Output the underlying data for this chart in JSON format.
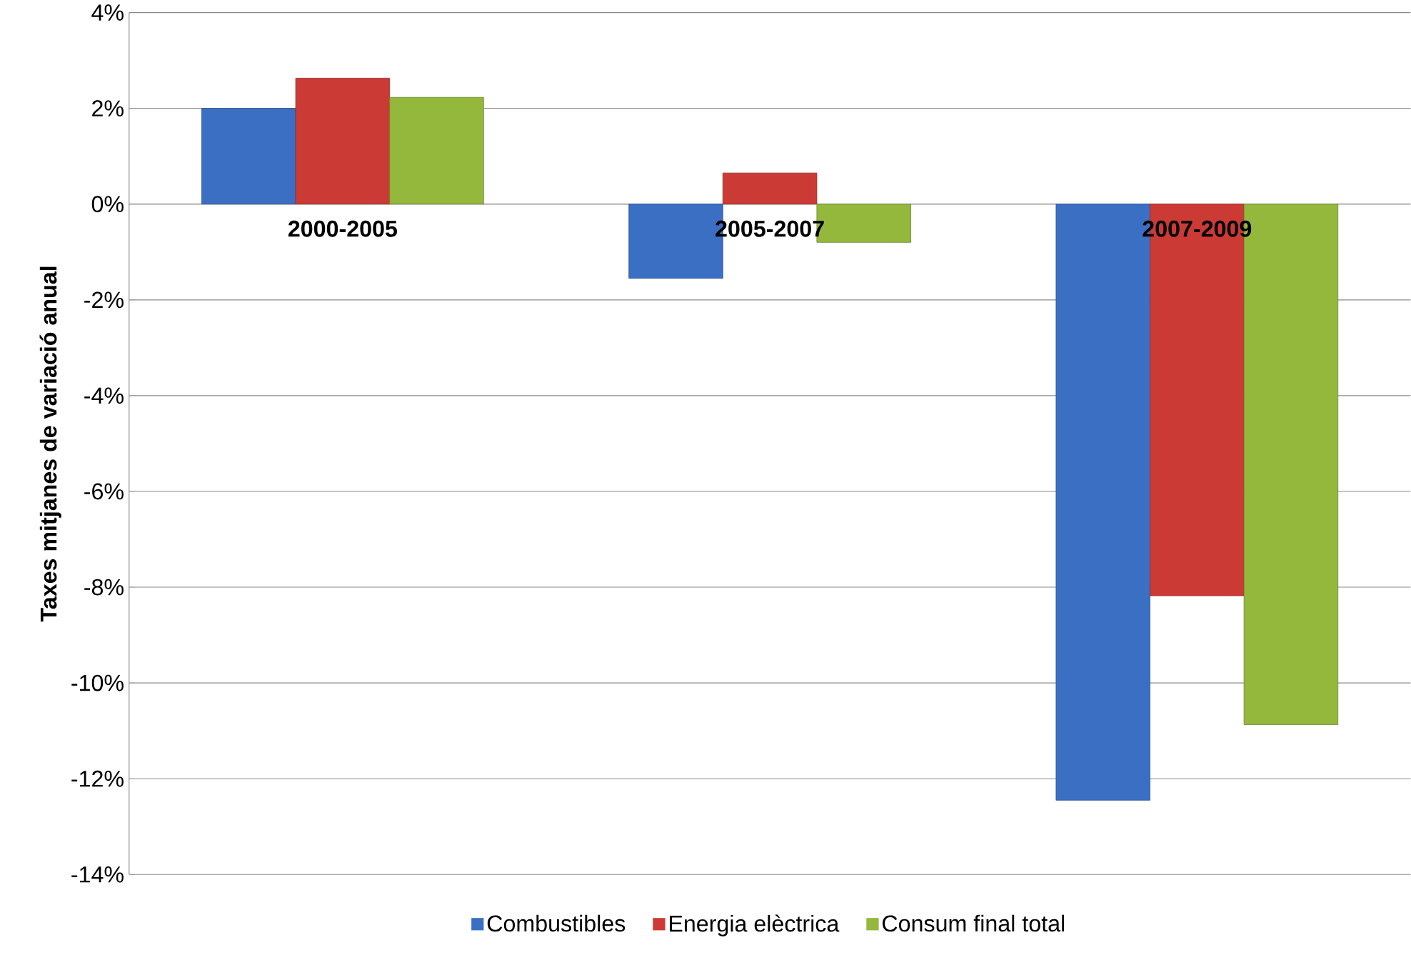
{
  "chart_data": {
    "type": "bar",
    "ylabel": "Taxes mitjanes de variació  anual",
    "categories": [
      "2000-2005",
      "2005-2007",
      "2007-2009"
    ],
    "series": [
      {
        "name": "Combustibles",
        "color": "#3a6fc4",
        "values": [
          2.0,
          -1.55,
          -12.45
        ]
      },
      {
        "name": "Energia elèctrica",
        "color": "#cc3a36",
        "values": [
          2.63,
          0.65,
          -8.18
        ]
      },
      {
        "name": "Consum final total",
        "color": "#94b83c",
        "values": [
          2.23,
          -0.8,
          -10.87
        ]
      }
    ],
    "ylim": [
      -14,
      4
    ],
    "yticks": [
      {
        "value": -14,
        "label": "-14%"
      },
      {
        "value": -12,
        "label": "-12%"
      },
      {
        "value": -10,
        "label": "-10%"
      },
      {
        "value": -8,
        "label": "-8%"
      },
      {
        "value": -6,
        "label": "-6%"
      },
      {
        "value": -4,
        "label": "-4%"
      },
      {
        "value": -2,
        "label": "-2%"
      },
      {
        "value": 0,
        "label": "0%"
      },
      {
        "value": 2,
        "label": "2%"
      },
      {
        "value": 4,
        "label": "4%"
      }
    ],
    "grid": "y",
    "legend": "bottom"
  }
}
